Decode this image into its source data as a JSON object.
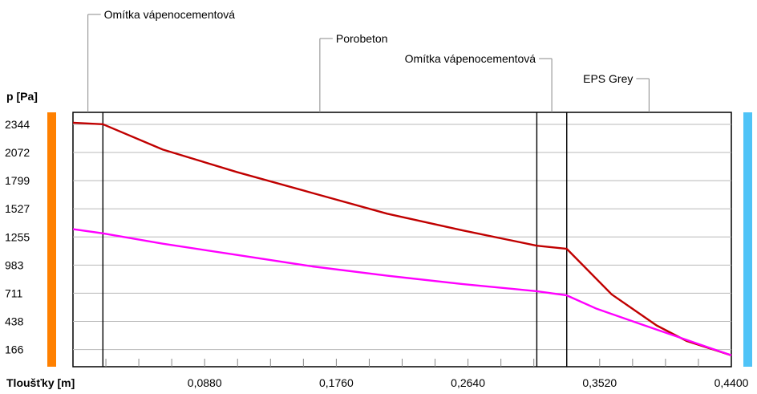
{
  "chart_data": {
    "type": "line",
    "ylabel": "p [Pa]",
    "xlabel": "Tloušťky [m]",
    "xlim": [
      0,
      0.44
    ],
    "ylim": [
      0,
      2460
    ],
    "y_ticks": [
      "2344",
      "2072",
      "1799",
      "1527",
      "1255",
      "983",
      "711",
      "438",
      "166"
    ],
    "y_tick_values": [
      2344,
      2072,
      1799,
      1527,
      1255,
      983,
      711,
      438,
      166
    ],
    "x_ticks": [
      "0,0880",
      "0,1760",
      "0,2640",
      "0,3520",
      "0,4400"
    ],
    "x_tick_values": [
      0.088,
      0.176,
      0.264,
      0.352,
      0.44
    ],
    "layer_boundaries": [
      0.02,
      0.31,
      0.33
    ],
    "layers": [
      {
        "name": "Omítka vápenocementová",
        "x_mid": 0.01
      },
      {
        "name": "Porobeton",
        "x_mid": 0.165
      },
      {
        "name": "Omítka vápenocementová",
        "x_mid": 0.32
      },
      {
        "name": "EPS Grey",
        "x_mid": 0.385
      }
    ],
    "series": [
      {
        "color": "#c00000",
        "x": [
          0,
          0.02,
          0.06,
          0.11,
          0.16,
          0.21,
          0.26,
          0.31,
          0.33,
          0.36,
          0.39,
          0.41,
          0.44
        ],
        "y": [
          2360,
          2345,
          2100,
          1880,
          1680,
          1480,
          1320,
          1170,
          1140,
          700,
          400,
          250,
          110
        ]
      },
      {
        "color": "#ff00ff",
        "x": [
          0,
          0.02,
          0.06,
          0.11,
          0.16,
          0.21,
          0.26,
          0.31,
          0.33,
          0.35,
          0.38,
          0.41,
          0.44
        ],
        "y": [
          1330,
          1290,
          1190,
          1080,
          970,
          880,
          800,
          730,
          690,
          560,
          410,
          260,
          110
        ]
      }
    ],
    "side_bars": {
      "left": "#ff8000",
      "right": "#4fc3f7"
    },
    "grid": true
  }
}
